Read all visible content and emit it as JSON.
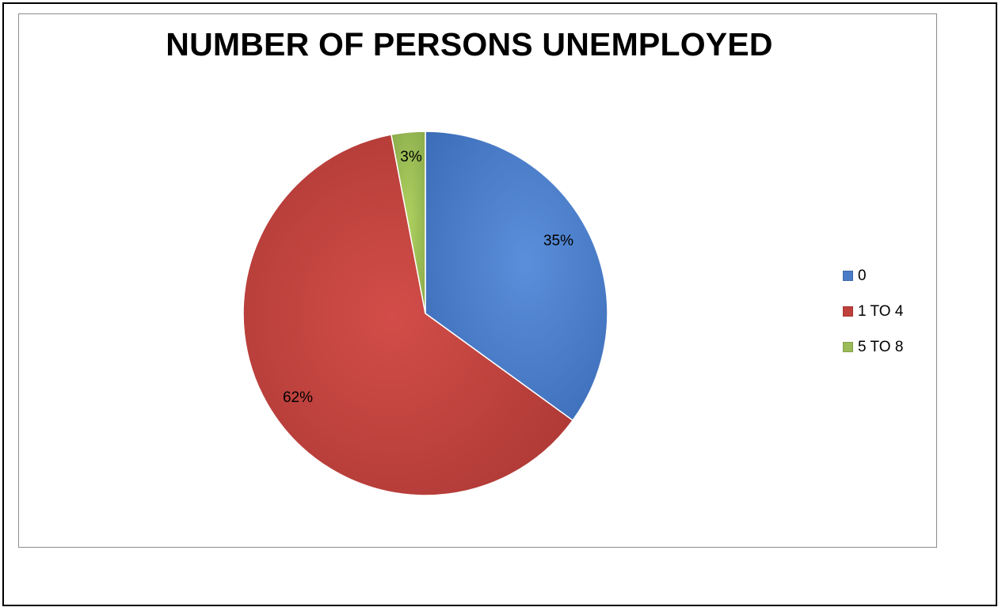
{
  "chart_data": {
    "type": "pie",
    "title": "NUMBER OF PERSONS UNEMPLOYED",
    "categories": [
      "0",
      "1 TO 4",
      "5 TO 8"
    ],
    "values": [
      35,
      62,
      3
    ],
    "value_labels": [
      "35%",
      "62%",
      "3%"
    ],
    "colors": [
      "#4a7cc7",
      "#c0403c",
      "#9bbb59"
    ],
    "legend_position": "right",
    "start_angle": "12 o'clock",
    "direction": "clockwise"
  }
}
